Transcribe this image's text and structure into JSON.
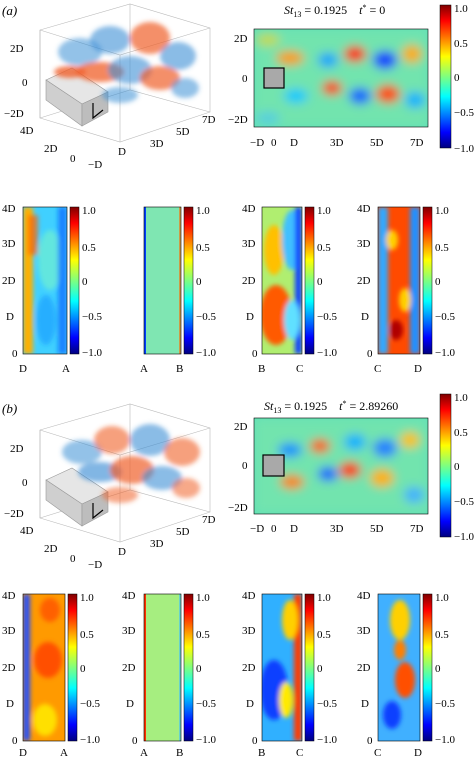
{
  "panels": [
    {
      "label": "(a)",
      "st_label": "St",
      "st_sub": "13",
      "st_value": " = 0.1925",
      "tstar_label": "t",
      "tstar_sup": "*",
      "tstar_value": " = 0",
      "iso_axes": {
        "z_ticks": [
          "2D",
          "0",
          "−2D"
        ],
        "y_ticks": [
          "4D",
          "2D",
          "0",
          "−D"
        ],
        "x_ticks": [
          "D",
          "3D",
          "5D",
          "7D"
        ]
      },
      "contour_axes": {
        "y_ticks": [
          "2D",
          "0",
          "−2D"
        ],
        "x_ticks": [
          "−D",
          "0",
          "D",
          "3D",
          "5D",
          "7D"
        ]
      },
      "main_colorbar_ticks": [
        "1.0",
        "0.5",
        "0",
        "−0.5",
        "−1.0"
      ],
      "strips": [
        {
          "y_ticks": [
            "4D",
            "3D",
            "2D",
            "D",
            "0"
          ],
          "left_label": "D",
          "right_label": "A",
          "colorbar_ticks": [
            "1.0",
            "0.5",
            "0",
            "−0.5",
            "−1.0"
          ]
        },
        {
          "y_ticks": [
            "",
            "",
            "",
            "",
            ""
          ],
          "left_label": "A",
          "right_label": "B",
          "colorbar_ticks": [
            "1.0",
            "0.5",
            "0",
            "−0.5",
            "−1.0"
          ]
        },
        {
          "y_ticks": [
            "4D",
            "3D",
            "2D",
            "D",
            "0"
          ],
          "left_label": "B",
          "right_label": "C",
          "colorbar_ticks": [
            "1.0",
            "0.5",
            "0",
            "−0.5",
            "−1.0"
          ]
        },
        {
          "y_ticks": [
            "4D",
            "3D",
            "2D",
            "D",
            "0"
          ],
          "left_label": "C",
          "right_label": "D",
          "colorbar_ticks": [
            "1.0",
            "0.5",
            "0",
            "−0.5",
            "−1.0"
          ]
        }
      ]
    },
    {
      "label": "(b)",
      "st_label": "St",
      "st_sub": "13",
      "st_value": " = 0.1925",
      "tstar_label": "t",
      "tstar_sup": "*",
      "tstar_value": " = 2.89260",
      "iso_axes": {
        "z_ticks": [
          "2D",
          "0",
          "−2D"
        ],
        "y_ticks": [
          "4D",
          "2D",
          "0",
          "−D"
        ],
        "x_ticks": [
          "D",
          "3D",
          "5D",
          "7D"
        ]
      },
      "contour_axes": {
        "y_ticks": [
          "2D",
          "0",
          "−2D"
        ],
        "x_ticks": [
          "−D",
          "0",
          "D",
          "3D",
          "5D",
          "7D"
        ]
      },
      "main_colorbar_ticks": [
        "1.0",
        "0.5",
        "0",
        "−0.5",
        "−1.0"
      ],
      "strips": [
        {
          "y_ticks": [
            "4D",
            "3D",
            "2D",
            "D",
            "0"
          ],
          "left_label": "D",
          "right_label": "A",
          "colorbar_ticks": [
            "1.0",
            "0.5",
            "0",
            "−0.5",
            "−1.0"
          ]
        },
        {
          "y_ticks": [
            "4D",
            "3D",
            "2D",
            "D",
            "0"
          ],
          "left_label": "A",
          "right_label": "B",
          "colorbar_ticks": [
            "1.0",
            "0.5",
            "0",
            "−0.5",
            "−1.0"
          ]
        },
        {
          "y_ticks": [
            "4D",
            "3D",
            "2D",
            "D",
            "0"
          ],
          "left_label": "B",
          "right_label": "C",
          "colorbar_ticks": [
            "1.0",
            "0.5",
            "0",
            "−0.5",
            "−1.0"
          ]
        },
        {
          "y_ticks": [
            "4D",
            "3D",
            "2D",
            "D",
            "0"
          ],
          "left_label": "C",
          "right_label": "D",
          "colorbar_ticks": [
            "1.0",
            "0.5",
            "0",
            "−0.5",
            "−1.0"
          ]
        }
      ]
    }
  ],
  "colors": {
    "jet_dark_red": "#7f0000",
    "jet_red": "#ff0000",
    "jet_yellow": "#ffff00",
    "jet_cyan": "#00ffff",
    "jet_blue": "#0000ff",
    "jet_dark_blue": "#00007f",
    "iso_positive": "#f0602a",
    "iso_negative": "#3d8fd6",
    "cylinder": "#a9a9a9"
  }
}
